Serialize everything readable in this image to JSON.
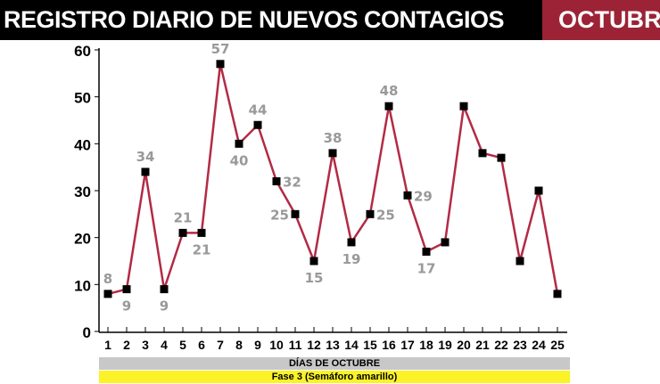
{
  "header": {
    "title": "REGISTRO DIARIO DE NUEVOS CONTAGIOS",
    "month": "OCTUBR"
  },
  "chart_data": {
    "type": "line",
    "title": "REGISTRO DIARIO DE NUEVOS CONTAGIOS",
    "xlabel": "DÍAS DE OCTUBRE",
    "phase_label": "Fase 3 (Semáforo amarillo)",
    "x": [
      1,
      2,
      3,
      4,
      5,
      6,
      7,
      8,
      9,
      10,
      11,
      12,
      13,
      14,
      15,
      16,
      17,
      18,
      19,
      20,
      21,
      22,
      23,
      24,
      25
    ],
    "values": [
      8,
      9,
      34,
      9,
      21,
      21,
      57,
      40,
      44,
      32,
      25,
      15,
      38,
      19,
      25,
      48,
      29,
      17,
      19,
      48,
      38,
      37,
      15,
      30,
      8
    ],
    "data_labels": [
      "8",
      "9",
      "34",
      "9",
      "21",
      "21",
      "57",
      "40",
      "44",
      "32",
      "25",
      "15",
      "38",
      "19",
      "25",
      "48",
      "29",
      "17",
      null,
      null,
      null,
      null,
      null,
      null,
      null
    ],
    "ylim": [
      0,
      60
    ],
    "yticks": [
      "0",
      "10",
      "20",
      "30",
      "40",
      "50",
      "60"
    ],
    "grid": false,
    "colors": {
      "line": "#b32a45",
      "marker": "#000000",
      "label": "#999999",
      "phase_band": "#fbf228",
      "axis_band": "#c8c8c8"
    }
  }
}
